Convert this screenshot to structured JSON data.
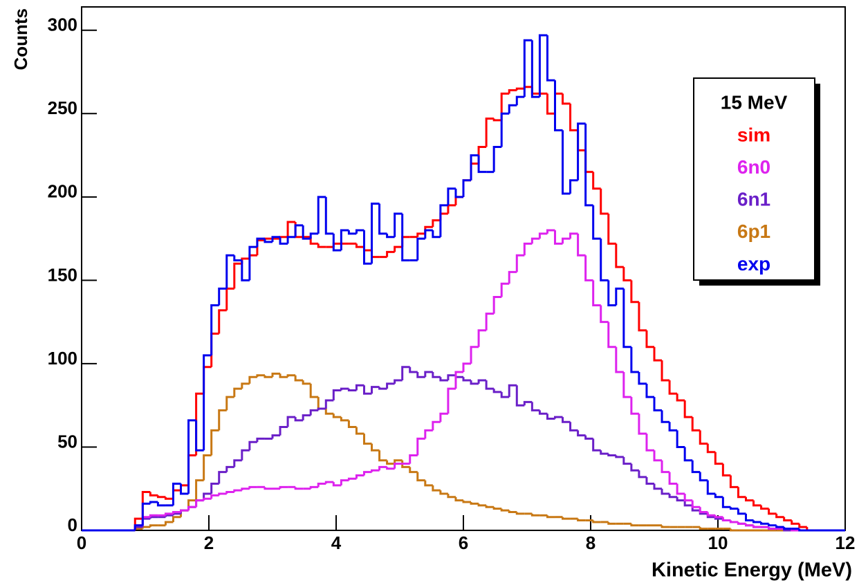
{
  "chart_data": {
    "type": "histogram",
    "xlabel": "Kinetic Energy (MeV)",
    "ylabel": "Counts",
    "legend_title": "15 MeV",
    "legend": "upper right",
    "xlim": [
      0,
      12
    ],
    "xticks": [
      0,
      2,
      4,
      6,
      8,
      10,
      12
    ],
    "ylim": [
      0,
      314
    ],
    "yticks": [
      0,
      50,
      100,
      150,
      200,
      250,
      300
    ],
    "bins": [
      0.84,
      0.96,
      1.08,
      1.2,
      1.32,
      1.44,
      1.56,
      1.68,
      1.8,
      1.92,
      2.04,
      2.16,
      2.28,
      2.4,
      2.52,
      2.64,
      2.76,
      2.88,
      3,
      3.12,
      3.24,
      3.36,
      3.48,
      3.6,
      3.72,
      3.84,
      3.96,
      4.08,
      4.2,
      4.32,
      4.44,
      4.56,
      4.68,
      4.8,
      4.92,
      5.04,
      5.16,
      5.28,
      5.4,
      5.52,
      5.64,
      5.76,
      5.88,
      6,
      6.12,
      6.24,
      6.36,
      6.48,
      6.6,
      6.72,
      6.84,
      6.96,
      7.08,
      7.2,
      7.32,
      7.44,
      7.56,
      7.68,
      7.8,
      7.92,
      8.04,
      8.16,
      8.28,
      8.4,
      8.52,
      8.64,
      8.76,
      8.88,
      9,
      9.12,
      9.24,
      9.36,
      9.48,
      9.6,
      9.72,
      9.84,
      9.96,
      10.08,
      10.2,
      10.32,
      10.44,
      10.56,
      10.68,
      10.8,
      10.92,
      11.04,
      11.16,
      11.28,
      11.4,
      11.52
    ],
    "series": [
      {
        "name": "sim",
        "color": "#ff0000",
        "values": [
          7,
          23,
          21,
          20,
          19,
          24,
          27,
          45,
          82,
          98,
          118,
          132,
          145,
          160,
          163,
          165,
          174,
          175,
          175,
          176,
          185,
          176,
          176,
          172,
          170,
          170,
          172,
          172,
          172,
          170,
          168,
          164,
          164,
          167,
          170,
          176,
          176,
          178,
          182,
          186,
          190,
          195,
          200,
          210,
          220,
          230,
          247,
          246,
          262,
          264,
          265,
          266,
          262,
          262,
          250,
          262,
          256,
          240,
          228,
          215,
          205,
          190,
          172,
          158,
          150,
          137,
          120,
          110,
          102,
          90,
          82,
          78,
          68,
          60,
          52,
          47,
          40,
          33,
          26,
          20,
          18,
          15,
          13,
          10,
          8,
          6,
          4,
          2,
          0
        ]
      },
      {
        "name": "6n0",
        "color": "#dd22ee",
        "values": [
          3,
          8,
          9,
          9,
          10,
          11,
          12,
          14,
          18,
          19,
          21,
          22,
          23,
          24,
          25,
          26,
          26,
          25,
          25,
          26,
          26,
          25,
          25,
          26,
          28,
          29,
          27,
          30,
          31,
          33,
          35,
          36,
          38,
          37,
          40,
          40,
          45,
          55,
          60,
          65,
          70,
          85,
          95,
          100,
          110,
          120,
          130,
          140,
          148,
          155,
          165,
          172,
          175,
          178,
          180,
          172,
          175,
          178,
          165,
          150,
          135,
          125,
          110,
          95,
          80,
          70,
          58,
          48,
          42,
          35,
          28,
          22,
          18,
          14,
          11,
          9,
          8,
          6,
          5,
          4,
          3,
          2,
          2,
          1,
          1,
          1,
          0,
          0,
          0
        ]
      },
      {
        "name": "6n1",
        "color": "#6a1fc8",
        "values": [
          2,
          7,
          8,
          8,
          9,
          10,
          12,
          14,
          18,
          22,
          28,
          35,
          38,
          42,
          48,
          53,
          55,
          55,
          57,
          62,
          68,
          66,
          69,
          72,
          73,
          78,
          84,
          85,
          84,
          87,
          82,
          86,
          85,
          88,
          90,
          98,
          95,
          92,
          95,
          92,
          90,
          93,
          92,
          90,
          88,
          90,
          85,
          83,
          80,
          87,
          75,
          77,
          72,
          70,
          67,
          68,
          65,
          60,
          57,
          55,
          48,
          46,
          45,
          44,
          40,
          36,
          32,
          28,
          25,
          22,
          20,
          18,
          15,
          12,
          10,
          8,
          7,
          6,
          5,
          4,
          3,
          2,
          2,
          1,
          1,
          0,
          0,
          0,
          0
        ]
      },
      {
        "name": "6p1",
        "color": "#c87814",
        "values": [
          1,
          2,
          3,
          3,
          5,
          8,
          12,
          18,
          30,
          45,
          60,
          72,
          80,
          85,
          88,
          92,
          93,
          92,
          94,
          92,
          93,
          90,
          88,
          80,
          73,
          70,
          68,
          66,
          62,
          58,
          52,
          48,
          42,
          40,
          42,
          38,
          35,
          30,
          27,
          24,
          22,
          20,
          18,
          17,
          16,
          15,
          14,
          13,
          12,
          11,
          10,
          10,
          9,
          9,
          8,
          8,
          7,
          7,
          6,
          6,
          5,
          5,
          4,
          4,
          4,
          3,
          3,
          3,
          3,
          2,
          2,
          2,
          2,
          2,
          1,
          1,
          1,
          1,
          0,
          0,
          0,
          0,
          0,
          0,
          0,
          0,
          0,
          0,
          0
        ]
      },
      {
        "name": "exp",
        "color": "#0000ee",
        "values": [
          3,
          16,
          17,
          15,
          15,
          28,
          22,
          66,
          48,
          105,
          135,
          145,
          165,
          162,
          150,
          170,
          175,
          173,
          176,
          172,
          176,
          183,
          175,
          178,
          200,
          178,
          168,
          180,
          178,
          180,
          160,
          196,
          178,
          176,
          190,
          162,
          162,
          175,
          180,
          176,
          195,
          205,
          200,
          210,
          225,
          215,
          215,
          230,
          250,
          255,
          260,
          294,
          260,
          297,
          270,
          240,
          202,
          210,
          244,
          195,
          175,
          150,
          135,
          145,
          110,
          95,
          88,
          80,
          72,
          65,
          60,
          50,
          42,
          35,
          30,
          22,
          20,
          14,
          13,
          10,
          6,
          5,
          4,
          3,
          2,
          1,
          1,
          0,
          0
        ]
      }
    ]
  }
}
